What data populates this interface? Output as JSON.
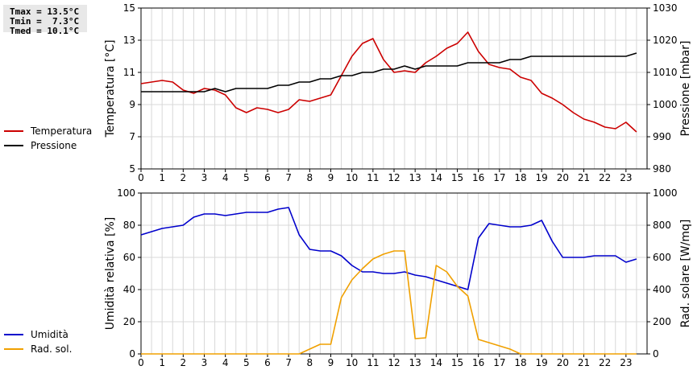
{
  "stats": {
    "tmax": "Tmax = 13.5°C",
    "tmin": "Tmin =  7.3°C",
    "tmed": "Tmed = 10.1°C"
  },
  "chart_data": [
    {
      "type": "line",
      "x_ticks": [
        "0",
        "1",
        "2",
        "3",
        "4",
        "5",
        "6",
        "7",
        "8",
        "9",
        "10",
        "11",
        "12",
        "13",
        "14",
        "15",
        "16",
        "17",
        "18",
        "19",
        "20",
        "21",
        "22",
        "23"
      ],
      "xlim": [
        0,
        24
      ],
      "ylabel": "Temperatura [°C]",
      "ylabel_right": "Pressione [mbar]",
      "ylim": [
        5,
        15
      ],
      "ylim_right": [
        980,
        1030
      ],
      "yticks": [
        "5",
        "7",
        "9",
        "11",
        "13",
        "15"
      ],
      "yticks_right": [
        "980",
        "990",
        "1000",
        "1010",
        "1020",
        "1030"
      ],
      "grid": true,
      "legend_position": "left",
      "series": [
        {
          "name": "Temperatura",
          "axis": "left",
          "color": "#cc0000",
          "x": [
            0,
            0.5,
            1,
            1.5,
            2,
            2.5,
            3,
            3.5,
            4,
            4.5,
            5,
            5.5,
            6,
            6.5,
            7,
            7.5,
            8,
            8.5,
            9,
            9.5,
            10,
            10.5,
            11,
            11.5,
            12,
            12.5,
            13,
            13.5,
            14,
            14.5,
            15,
            15.5,
            16,
            16.5,
            17,
            17.5,
            18,
            18.5,
            19,
            19.5,
            20,
            20.5,
            21,
            21.5,
            22,
            22.5,
            23,
            23.5
          ],
          "values": [
            10.3,
            10.4,
            10.5,
            10.4,
            9.9,
            9.7,
            10.0,
            9.9,
            9.6,
            8.8,
            8.5,
            8.8,
            8.7,
            8.5,
            8.7,
            9.3,
            9.2,
            9.4,
            9.6,
            10.8,
            12.0,
            12.8,
            13.1,
            11.8,
            11.0,
            11.1,
            11.0,
            11.6,
            12.0,
            12.5,
            12.8,
            13.5,
            12.3,
            11.5,
            11.3,
            11.2,
            10.7,
            10.5,
            9.7,
            9.4,
            9.0,
            8.5,
            8.1,
            7.9,
            7.6,
            7.5,
            7.9,
            7.3
          ]
        },
        {
          "name": "Pressione",
          "axis": "right",
          "color": "#000000",
          "x": [
            0,
            0.5,
            1,
            1.5,
            2,
            2.5,
            3,
            3.5,
            4,
            4.5,
            5,
            5.5,
            6,
            6.5,
            7,
            7.5,
            8,
            8.5,
            9,
            9.5,
            10,
            10.5,
            11,
            11.5,
            12,
            12.5,
            13,
            13.5,
            14,
            14.5,
            15,
            15.5,
            16,
            16.5,
            17,
            17.5,
            18,
            18.5,
            19,
            19.5,
            20,
            20.5,
            21,
            21.5,
            22,
            22.5,
            23,
            23.5
          ],
          "values": [
            1004,
            1004,
            1004,
            1004,
            1004,
            1004,
            1004,
            1005,
            1004,
            1005,
            1005,
            1005,
            1005,
            1006,
            1006,
            1007,
            1007,
            1008,
            1008,
            1009,
            1009,
            1010,
            1010,
            1011,
            1011,
            1012,
            1011,
            1012,
            1012,
            1012,
            1012,
            1013,
            1013,
            1013,
            1013,
            1014,
            1014,
            1015,
            1015,
            1015,
            1015,
            1015,
            1015,
            1015,
            1015,
            1015,
            1015,
            1016
          ]
        }
      ]
    },
    {
      "type": "line",
      "x_ticks": [
        "0",
        "1",
        "2",
        "3",
        "4",
        "5",
        "6",
        "7",
        "8",
        "9",
        "10",
        "11",
        "12",
        "13",
        "14",
        "15",
        "16",
        "17",
        "18",
        "19",
        "20",
        "21",
        "22",
        "23"
      ],
      "xlim": [
        0,
        24
      ],
      "ylabel": "Umidità relativa [%]",
      "ylabel_right": "Rad. solare [W/mq]",
      "ylim": [
        0,
        100
      ],
      "ylim_right": [
        0,
        1000
      ],
      "yticks": [
        "0",
        "20",
        "40",
        "60",
        "80",
        "100"
      ],
      "yticks_right": [
        "0",
        "200",
        "400",
        "600",
        "800",
        "1000"
      ],
      "grid": true,
      "legend_position": "left",
      "series": [
        {
          "name": "Umidità",
          "axis": "left",
          "color": "#0000cc",
          "x": [
            0,
            0.5,
            1,
            1.5,
            2,
            2.5,
            3,
            3.5,
            4,
            4.5,
            5,
            5.5,
            6,
            6.5,
            7,
            7.5,
            8,
            8.5,
            9,
            9.5,
            10,
            10.5,
            11,
            11.5,
            12,
            12.5,
            13,
            13.5,
            14,
            14.5,
            15,
            15.5,
            16,
            16.5,
            17,
            17.5,
            18,
            18.5,
            19,
            19.5,
            20,
            20.5,
            21,
            21.5,
            22,
            22.5,
            23,
            23.5
          ],
          "values": [
            74,
            76,
            78,
            79,
            80,
            85,
            87,
            87,
            86,
            87,
            88,
            88,
            88,
            90,
            91,
            74,
            65,
            64,
            64,
            61,
            55,
            51,
            51,
            50,
            50,
            51,
            49,
            48,
            46,
            44,
            42,
            40,
            72,
            81,
            80,
            79,
            79,
            80,
            83,
            70,
            60,
            60,
            60,
            61,
            61,
            61,
            57,
            59
          ]
        },
        {
          "name": "Rad. sol.",
          "axis": "right",
          "color": "#f0a000",
          "x": [
            0,
            7.5,
            8,
            8.5,
            9,
            9.5,
            10,
            10.5,
            11,
            11.5,
            12,
            12.5,
            13,
            13.5,
            14,
            14.5,
            15,
            15.5,
            16,
            16.5,
            17,
            17.5,
            18,
            23.5
          ],
          "values": [
            0,
            0,
            30,
            60,
            60,
            350,
            460,
            530,
            590,
            620,
            640,
            640,
            95,
            100,
            550,
            510,
            420,
            360,
            90,
            70,
            50,
            30,
            0,
            0
          ]
        }
      ]
    }
  ]
}
